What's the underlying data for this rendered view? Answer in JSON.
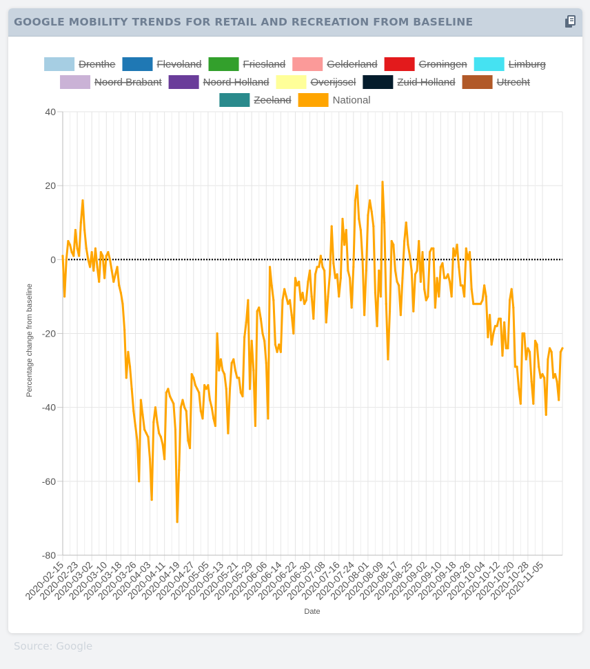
{
  "header": {
    "title": "GOOGLE MOBILITY TRENDS FOR RETAIL AND RECREATION FROM BASELINE",
    "copy_icon": "copy-icon"
  },
  "footer": {
    "source": "Source: Google"
  },
  "chart_data": {
    "type": "line",
    "title": "",
    "xlabel": "Date",
    "ylabel": "Percentage change from baseline",
    "ylim": [
      -80,
      40
    ],
    "yticks": [
      40,
      20,
      0,
      -20,
      -40,
      -60,
      -80
    ],
    "grid": true,
    "legend_placement": "top",
    "baseline": {
      "y": 0,
      "style": "dotted",
      "color": "#000000"
    },
    "xticks": [
      "2020-02-15",
      "2020-02-23",
      "2020-03-02",
      "2020-03-10",
      "2020-03-18",
      "2020-03-26",
      "2020-04-03",
      "2020-04-11",
      "2020-04-19",
      "2020-04-27",
      "2020-05-05",
      "2020-05-13",
      "2020-05-21",
      "2020-05-29",
      "2020-06-06",
      "2020-06-14",
      "2020-06-22",
      "2020-06-30",
      "2020-07-08",
      "2020-07-16",
      "2020-07-24",
      "2020-08-01",
      "2020-08-09",
      "2020-08-17",
      "2020-08-25",
      "2020-09-02",
      "2020-09-10",
      "2020-09-18",
      "2020-09-26",
      "2020-10-04",
      "2020-10-12",
      "2020-10-20",
      "2020-10-28",
      "2020-11-05"
    ],
    "x_start": "2020-02-15",
    "legend": [
      {
        "name": "Drenthe",
        "color": "#a6cee3",
        "hidden": true
      },
      {
        "name": "Flevoland",
        "color": "#1f78b4",
        "hidden": true
      },
      {
        "name": "Friesland",
        "color": "#33a02c",
        "hidden": true
      },
      {
        "name": "Gelderland",
        "color": "#fb9a99",
        "hidden": true
      },
      {
        "name": "Groningen",
        "color": "#e31a1c",
        "hidden": true
      },
      {
        "name": "Limburg",
        "color": "#45e2f2",
        "hidden": true
      },
      {
        "name": "Noord Brabant",
        "color": "#cab2d6",
        "hidden": true
      },
      {
        "name": "Noord Holland",
        "color": "#6a3d9a",
        "hidden": true
      },
      {
        "name": "Overijssel",
        "color": "#ffff99",
        "hidden": true
      },
      {
        "name": "Zuid Holland",
        "color": "#041c2c",
        "hidden": true
      },
      {
        "name": "Utrecht",
        "color": "#b15928",
        "hidden": true
      },
      {
        "name": "Zeeland",
        "color": "#2a8a8c",
        "hidden": true
      },
      {
        "name": "National",
        "color": "#ffa500",
        "hidden": false
      }
    ],
    "series": [
      {
        "name": "National",
        "color": "#ffa500",
        "values": [
          1,
          -10,
          0,
          5,
          4,
          2,
          1,
          8,
          3,
          1,
          10,
          16,
          8,
          3,
          0,
          -2,
          2,
          -3,
          3,
          -2,
          -6,
          2,
          1,
          -5,
          1,
          2,
          0,
          -3,
          -6,
          -4,
          -2,
          -7,
          -9,
          -12,
          -19,
          -32,
          -25,
          -29,
          -35,
          -41,
          -45,
          -49,
          -60,
          -38,
          -42,
          -46,
          -47,
          -48,
          -54,
          -65,
          -44,
          -40,
          -44,
          -47,
          -48,
          -50,
          -54,
          -36,
          -35,
          -37,
          -38,
          -39,
          -46,
          -71,
          -57,
          -40,
          -38,
          -40,
          -41,
          -49,
          -51,
          -31,
          -32,
          -34,
          -35,
          -36,
          -41,
          -43,
          -34,
          -35,
          -34,
          -38,
          -40,
          -43,
          -45,
          -20,
          -30,
          -27,
          -30,
          -31,
          -35,
          -47,
          -35,
          -28,
          -27,
          -30,
          -32,
          -32,
          -36,
          -37,
          -21,
          -17,
          -11,
          -35,
          -22,
          -30,
          -45,
          -14,
          -13,
          -16,
          -20,
          -22,
          -28,
          -43,
          -2,
          -7,
          -11,
          -23,
          -25,
          -23,
          -25,
          -11,
          -8,
          -10,
          -12,
          -11,
          -15,
          -20,
          -5,
          -7,
          -6,
          -11,
          -9,
          -12,
          -11,
          -6,
          -3,
          -10,
          -16,
          -4,
          -2,
          -2,
          1,
          -2,
          -3,
          -17,
          -10,
          -4,
          9,
          -1,
          -5,
          -4,
          -10,
          -5,
          11,
          4,
          8,
          -3,
          -5,
          -13,
          -2,
          16,
          20,
          11,
          8,
          0,
          -15,
          -3,
          12,
          16,
          13,
          9,
          -9,
          -18,
          -3,
          -10,
          21,
          10,
          -12,
          -27,
          -14,
          5,
          4,
          -3,
          -6,
          -7,
          -15,
          -5,
          5,
          10,
          4,
          1,
          -3,
          -14,
          -4,
          -3,
          5,
          -6,
          2,
          -8,
          -11,
          -10,
          2,
          3,
          3,
          -13,
          -5,
          -10,
          -2,
          -1,
          -5,
          -5,
          -4,
          -6,
          -10,
          3,
          1,
          4,
          -2,
          -7,
          -7,
          -10,
          3,
          0,
          2,
          -8,
          -12,
          -12,
          -12,
          -12,
          -12,
          -11,
          -7,
          -10,
          -21,
          -15,
          -23,
          -20,
          -18,
          -18,
          -16,
          -16,
          -26,
          -17,
          -24,
          -24,
          -11,
          -8,
          -13,
          -29,
          -29,
          -35,
          -39,
          -20,
          -20,
          -27,
          -24,
          -25,
          -33,
          -39,
          -22,
          -23,
          -29,
          -32,
          -31,
          -32,
          -42,
          -27,
          -24,
          -25,
          -32,
          -31,
          -33,
          -38,
          -25,
          -24
        ]
      }
    ]
  }
}
